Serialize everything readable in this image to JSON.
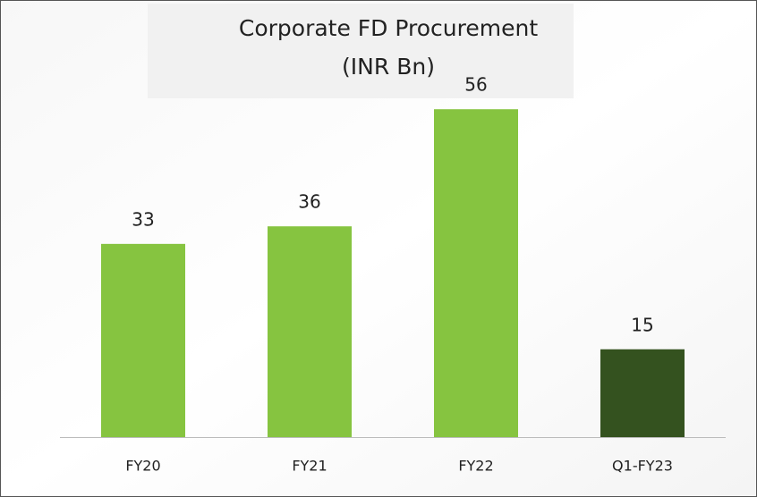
{
  "chart_data": {
    "type": "bar",
    "title": "Corporate FD Procurement",
    "subtitle": "(INR Bn)",
    "categories": [
      "FY20",
      "FY21",
      "FY22",
      "Q1-FY23"
    ],
    "values": [
      33,
      36,
      56,
      15
    ],
    "colors": [
      "#86c440",
      "#86c440",
      "#86c440",
      "#34521f"
    ],
    "ylim": [
      0,
      60
    ],
    "grid": false
  }
}
